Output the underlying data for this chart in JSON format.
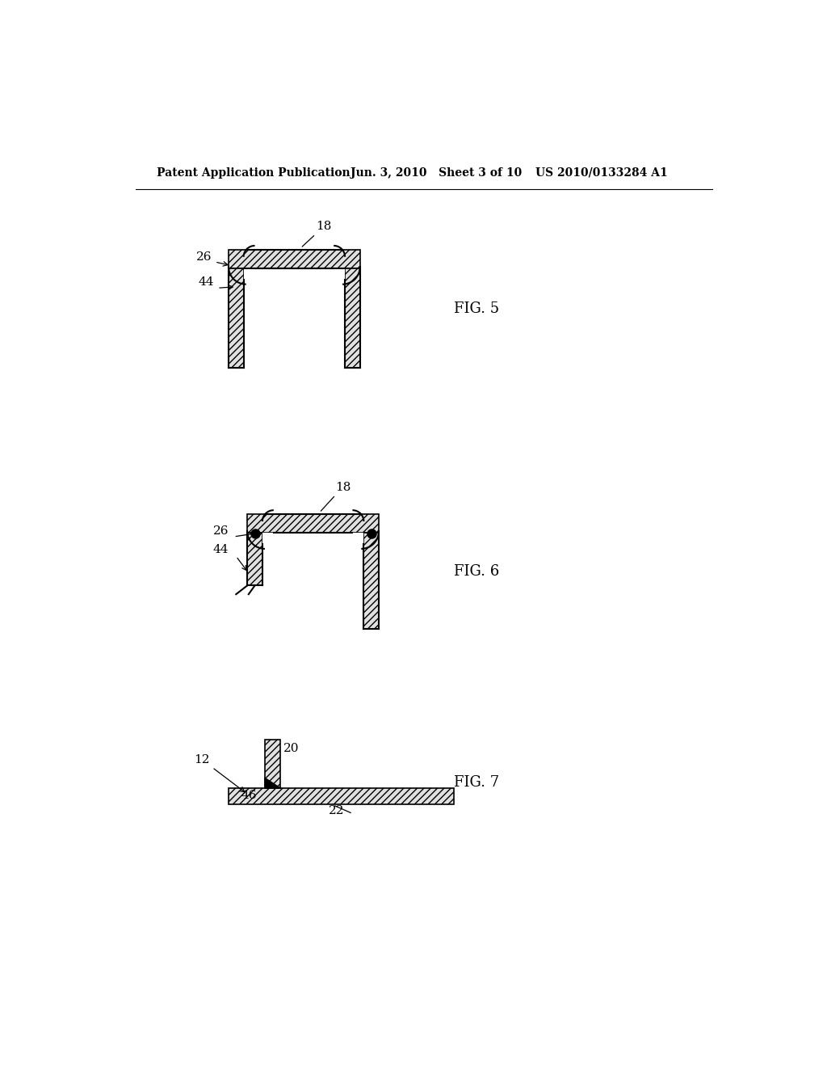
{
  "background_color": "#ffffff",
  "header_left": "Patent Application Publication",
  "header_mid": "Jun. 3, 2010   Sheet 3 of 10",
  "header_right": "US 2010/0133284 A1",
  "fig5_label": "FIG. 5",
  "fig6_label": "FIG. 6",
  "fig7_label": "FIG. 7",
  "line_color": "#000000"
}
